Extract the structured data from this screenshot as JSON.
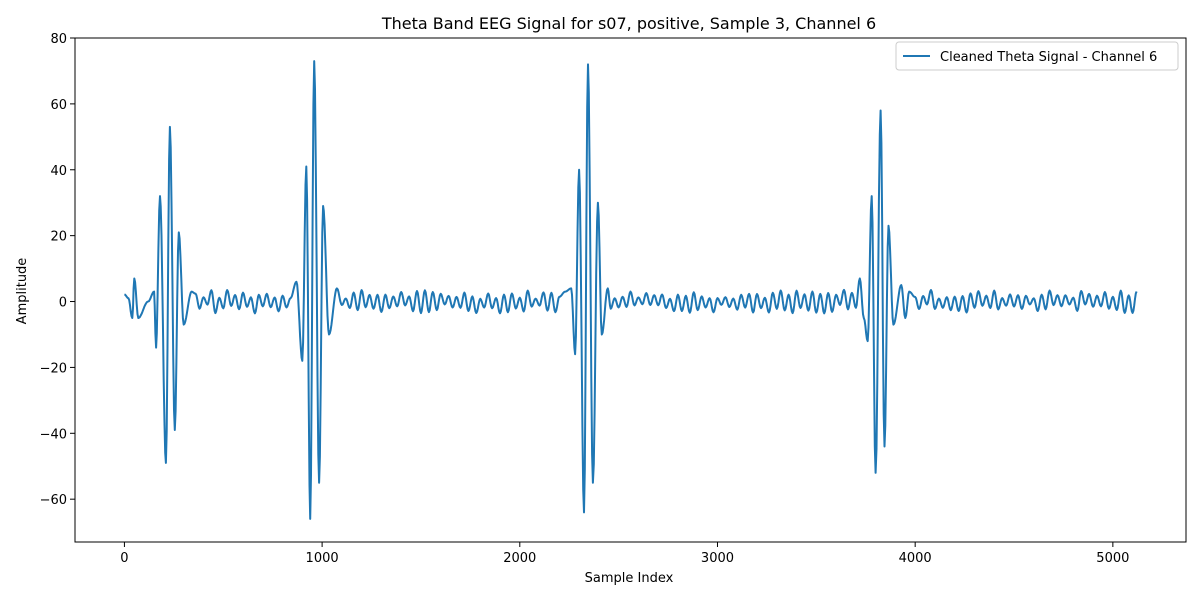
{
  "chart_data": {
    "type": "line",
    "title": "Theta Band EEG Signal for s07, positive, Sample 3, Channel 6",
    "xlabel": "Sample Index",
    "ylabel": "Amplitude",
    "xlim": [
      -250,
      5370
    ],
    "ylim": [
      -73,
      80
    ],
    "xticks": [
      0,
      1000,
      2000,
      3000,
      4000,
      5000
    ],
    "yticks": [
      -60,
      -40,
      -20,
      0,
      20,
      40,
      60,
      80
    ],
    "xtick_labels": [
      "0",
      "1000",
      "2000",
      "3000",
      "4000",
      "5000"
    ],
    "ytick_labels": [
      "−60",
      "−40",
      "−20",
      "0",
      "20",
      "40",
      "60",
      "80"
    ],
    "grid": false,
    "legend_position": "top-right",
    "series": [
      {
        "name": "Cleaned Theta Signal - Channel 6",
        "color": "#1f77b4",
        "x_start": 0,
        "x_end": 5120,
        "bursts": [
          {
            "center": 200,
            "peaks": [
              [
                20,
                1
              ],
              [
                40,
                -5
              ],
              [
                50,
                7
              ],
              [
                70,
                -5
              ],
              [
                120,
                0
              ],
              [
                150,
                3
              ],
              [
                160,
                -14
              ],
              [
                180,
                32
              ],
              [
                210,
                -49
              ],
              [
                230,
                53
              ],
              [
                255,
                -39
              ],
              [
                275,
                21
              ],
              [
                300,
                -7
              ],
              [
                340,
                3
              ]
            ]
          },
          {
            "center": 950,
            "peaks": [
              [
                870,
                6
              ],
              [
                900,
                -18
              ],
              [
                920,
                41
              ],
              [
                940,
                -66
              ],
              [
                960,
                73
              ],
              [
                985,
                -55
              ],
              [
                1005,
                29
              ],
              [
                1035,
                -10
              ],
              [
                1075,
                4
              ]
            ]
          },
          {
            "center": 2340,
            "peaks": [
              [
                2230,
                3
              ],
              [
                2260,
                4
              ],
              [
                2280,
                -16
              ],
              [
                2300,
                40
              ],
              [
                2325,
                -64
              ],
              [
                2345,
                72
              ],
              [
                2370,
                -55
              ],
              [
                2395,
                30
              ],
              [
                2415,
                -10
              ],
              [
                2445,
                4
              ]
            ]
          },
          {
            "center": 3820,
            "peaks": [
              [
                3720,
                7
              ],
              [
                3740,
                -5
              ],
              [
                3760,
                -12
              ],
              [
                3780,
                32
              ],
              [
                3800,
                -52
              ],
              [
                3825,
                58
              ],
              [
                3845,
                -44
              ],
              [
                3865,
                23
              ],
              [
                3890,
                -7
              ],
              [
                3930,
                5
              ],
              [
                3950,
                -5
              ],
              [
                3970,
                3
              ]
            ]
          }
        ],
        "baseline_amplitude": 2
      }
    ]
  }
}
